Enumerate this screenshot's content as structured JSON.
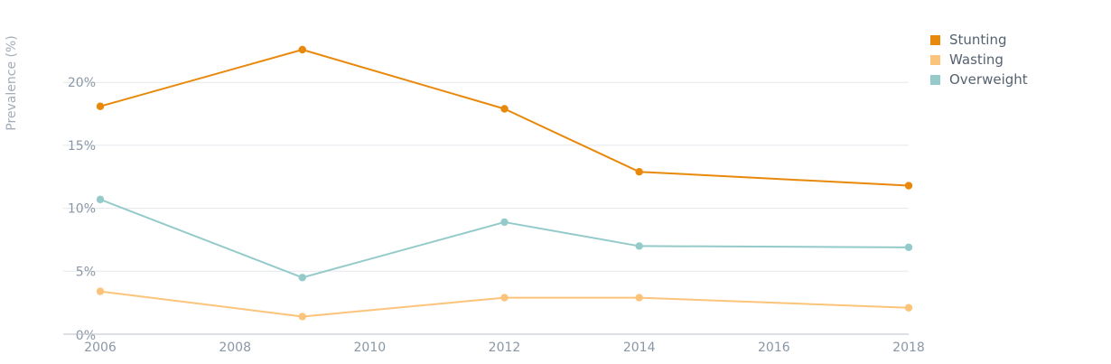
{
  "chart_data": {
    "type": "line",
    "title": "",
    "xlabel": "",
    "ylabel": "Prevalence (%)",
    "x_ticks": [
      "2006",
      "2008",
      "2010",
      "2012",
      "2014",
      "2016",
      "2018"
    ],
    "y_ticks": [
      "0%",
      "5%",
      "10%",
      "15%",
      "20%"
    ],
    "xlim": [
      2006,
      2018
    ],
    "ylim": [
      0,
      22.6
    ],
    "grid": "horizontal",
    "legend_position": "top-right",
    "series": [
      {
        "name": "Stunting",
        "color": "#e8890c",
        "points": [
          {
            "x": 2006,
            "y": 18.1
          },
          {
            "x": 2009,
            "y": 22.6
          },
          {
            "x": 2012,
            "y": 17.9
          },
          {
            "x": 2014,
            "y": 12.9
          },
          {
            "x": 2018,
            "y": 11.8
          }
        ]
      },
      {
        "name": "Wasting",
        "color": "#fbc47a",
        "points": [
          {
            "x": 2006,
            "y": 3.4
          },
          {
            "x": 2009,
            "y": 1.4
          },
          {
            "x": 2012,
            "y": 2.9
          },
          {
            "x": 2014,
            "y": 2.9
          },
          {
            "x": 2018,
            "y": 2.1
          }
        ]
      },
      {
        "name": "Overweight",
        "color": "#94cbca",
        "points": [
          {
            "x": 2006,
            "y": 10.7
          },
          {
            "x": 2009,
            "y": 4.5
          },
          {
            "x": 2012,
            "y": 8.9
          },
          {
            "x": 2014,
            "y": 7.0
          },
          {
            "x": 2018,
            "y": 6.9
          }
        ]
      }
    ]
  }
}
